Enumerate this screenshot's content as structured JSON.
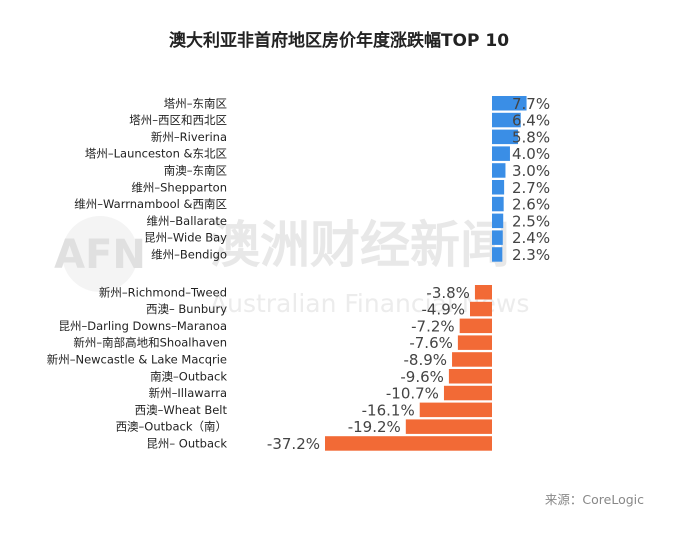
{
  "chart_data": {
    "type": "bar",
    "orientation": "horizontal",
    "title": "澳大利亚非首府地区房价年度涨跌幅TOP 10",
    "source": "来源：CoreLogic",
    "groups": [
      {
        "categories": [
          "塔州–东南区",
          "塔州–西区和西北区",
          "新州–Riverina",
          "塔州–Launceston &东北区",
          "南澳–东南区",
          "维州–Shepparton",
          "维州–Warrnambool &西南区",
          "维州–Ballarate",
          "昆州–Wide Bay",
          "维州–Bendigo"
        ],
        "values": [
          7.7,
          6.4,
          5.8,
          4.0,
          3.0,
          2.7,
          2.6,
          2.5,
          2.4,
          2.3
        ],
        "labels": [
          "7.7%",
          "6.4%",
          "5.8%",
          "4.0%",
          "3.0%",
          "2.7%",
          "2.6%",
          "2.5%",
          "2.4%",
          "2.3%"
        ]
      },
      {
        "categories": [
          "新州–Richmond–Tweed",
          "西澳– Bunbury",
          "昆州–Darling Downs–Maranoa",
          "新州–南部高地和Shoalhaven",
          "新州–Newcastle & Lake Macqrie",
          "南澳–Outback",
          "新州–Illawarra",
          "西澳–Wheat Belt",
          "西澳–Outback（南）",
          "昆州– Outback"
        ],
        "values": [
          -3.8,
          -4.9,
          -7.2,
          -7.6,
          -8.9,
          -9.6,
          -10.7,
          -16.1,
          -19.2,
          -37.2
        ],
        "labels": [
          "-3.8%",
          "-4.9%",
          "-7.2%",
          "-7.6%",
          "-8.9%",
          "-9.6%",
          "-10.7%",
          "-16.1%",
          "-19.2%",
          "-37.2%"
        ]
      }
    ],
    "colors": {
      "positive": "#3a8ee6",
      "negative": "#f26a36"
    },
    "grid": false,
    "legend": "none"
  },
  "watermark": {
    "logo_text": "AFN",
    "cn_text": "澳洲财经新闻",
    "en_text": "Australian Financial News"
  }
}
